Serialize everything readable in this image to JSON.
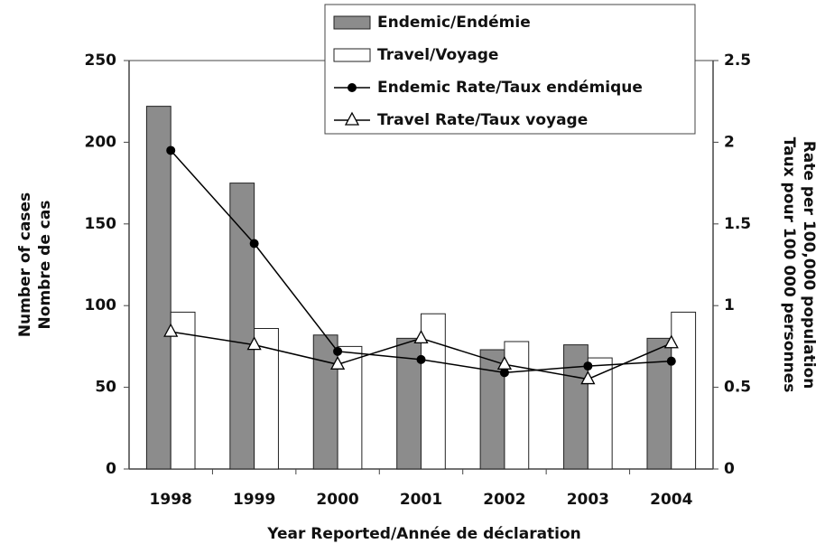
{
  "chart_data": {
    "type": "bar",
    "categories": [
      "1998",
      "1999",
      "2000",
      "2001",
      "2002",
      "2003",
      "2004"
    ],
    "series": [
      {
        "name": "Endemic/Endémie",
        "type": "bar",
        "color": "#8c8c8c",
        "values": [
          222,
          175,
          82,
          80,
          73,
          76,
          80
        ]
      },
      {
        "name": "Travel/Voyage",
        "type": "bar",
        "color": "#ffffff",
        "values": [
          96,
          86,
          75,
          95,
          78,
          68,
          96
        ]
      },
      {
        "name": "Endemic Rate/Taux endémique",
        "type": "line",
        "marker": "circle",
        "axis": "y2",
        "color": "#000000",
        "values": [
          1.95,
          1.38,
          0.72,
          0.67,
          0.59,
          0.63,
          0.66
        ]
      },
      {
        "name": "Travel Rate/Taux voyage",
        "type": "line",
        "marker": "triangle",
        "axis": "y2",
        "color": "#000000",
        "values": [
          0.84,
          0.76,
          0.64,
          0.8,
          0.64,
          0.55,
          0.77
        ]
      }
    ],
    "x_label": "Year Reported/Année de déclaration",
    "y_label": [
      "Number of cases",
      "Nombre de cas"
    ],
    "y2_label": [
      "Rate per 100,000 population",
      "Taux pour 100 000 personnes"
    ],
    "ylim": [
      0,
      250
    ],
    "yticks": [
      0,
      50,
      100,
      150,
      200,
      250
    ],
    "y2lim": [
      0,
      2.5
    ],
    "y2ticks": [
      0,
      0.5,
      1,
      1.5,
      2,
      2.5
    ],
    "grid": false
  }
}
